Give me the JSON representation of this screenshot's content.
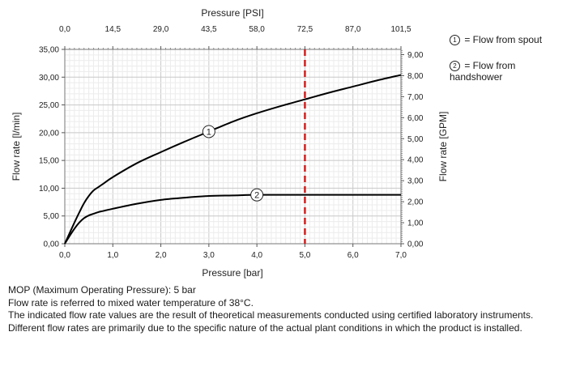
{
  "chart_data": {
    "type": "line",
    "title": "",
    "xlabel": "Pressure [bar]",
    "x2label": "Pressure [PSI]",
    "ylabel": "Flow rate [l/min]",
    "y2label": "Flow rate [GPM]",
    "xlim": [
      0,
      7
    ],
    "ylim": [
      0,
      35
    ],
    "y2lim": [
      0,
      9.25
    ],
    "x_ticks": [
      "0,0",
      "1,0",
      "2,0",
      "3,0",
      "4,0",
      "5,0",
      "6,0",
      "7,0"
    ],
    "x2_ticks": [
      "0,0",
      "14,5",
      "29,0",
      "43,5",
      "58,0",
      "72,5",
      "87,0",
      "101,5"
    ],
    "y_ticks": [
      "0,00",
      "5,00",
      "10,00",
      "15,00",
      "20,00",
      "25,00",
      "30,00",
      "35,00"
    ],
    "y2_ticks": [
      "0,00",
      "1,00",
      "2,00",
      "3,00",
      "4,00",
      "5,00",
      "6,00",
      "7,00",
      "8,00",
      "9,00"
    ],
    "grid": true,
    "series": [
      {
        "name": "1",
        "color": "#000000",
        "x": [
          0,
          0.1,
          0.2,
          0.3,
          0.4,
          0.5,
          0.6,
          0.7,
          0.8,
          1.0,
          1.5,
          2.0,
          2.5,
          3.0,
          3.5,
          4.0,
          4.5,
          5.0,
          5.5,
          6.0,
          6.5,
          7.0
        ],
        "y": [
          0,
          1.9,
          3.8,
          5.6,
          7.3,
          8.6,
          9.6,
          10.2,
          10.8,
          12.0,
          14.5,
          16.5,
          18.4,
          20.2,
          22.0,
          23.5,
          24.8,
          26.0,
          27.2,
          28.3,
          29.4,
          30.4
        ]
      },
      {
        "name": "2",
        "color": "#000000",
        "x": [
          0,
          0.1,
          0.2,
          0.3,
          0.4,
          0.5,
          0.6,
          0.7,
          0.8,
          1.0,
          1.5,
          2.0,
          2.5,
          3.0,
          3.5,
          4.0,
          4.5,
          5.0,
          5.5,
          6.0,
          6.5,
          7.0
        ],
        "y": [
          0,
          1.4,
          2.7,
          3.8,
          4.6,
          5.1,
          5.4,
          5.7,
          5.9,
          6.3,
          7.2,
          7.9,
          8.3,
          8.6,
          8.7,
          8.8,
          8.8,
          8.8,
          8.8,
          8.8,
          8.8,
          8.8
        ]
      }
    ],
    "annotations": [
      {
        "type": "vline",
        "x": 5,
        "style": "dashed",
        "color": "#d01f1f"
      },
      {
        "type": "circle-label",
        "text": "1",
        "x": 3.0,
        "y": 20.2
      },
      {
        "type": "circle-label",
        "text": "2",
        "x": 4.0,
        "y": 8.8
      }
    ]
  },
  "legend": {
    "item1_num": "1",
    "item1_text": "= Flow from spout",
    "item2_num": "2",
    "item2_text": "= Flow from",
    "item2_text_cont": "handshower"
  },
  "notes": [
    "MOP (Maximum Operating Pressure): 5 bar",
    "Flow rate is referred to mixed water temperature of 38°C.",
    "The indicated flow rate values are the result of theoretical measurements conducted using certified laboratory instruments.",
    "Different flow rates are primarily due to the specific nature of the actual plant conditions in which the product is installed."
  ]
}
